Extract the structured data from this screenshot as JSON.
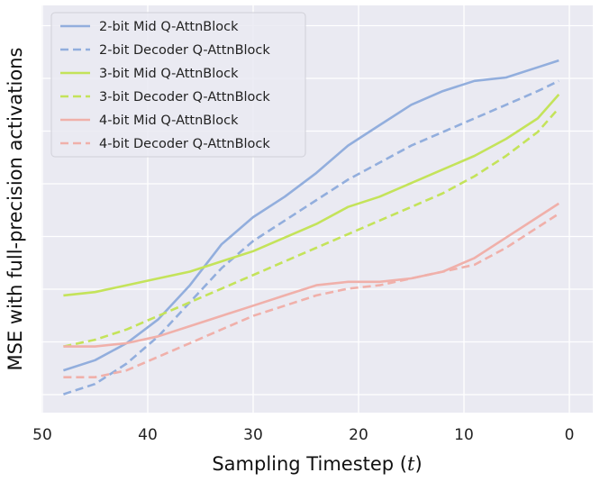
{
  "chart_data": {
    "type": "line",
    "title": "",
    "xlabel": "Sampling Timestep",
    "xlabel_var": "t",
    "ylabel": "MSE with full-precision activations",
    "xlim": [
      50,
      0
    ],
    "x_inverted": true,
    "x_ticks": [
      "50",
      "40",
      "30",
      "20",
      "10",
      "0"
    ],
    "y_ticks_labeled": false,
    "ylim": [
      0,
      1
    ],
    "grid": true,
    "legend_position": "top-left",
    "x": [
      48,
      45,
      42,
      39,
      36,
      33,
      30,
      27,
      24,
      21,
      18,
      15,
      12,
      9,
      6,
      3,
      1
    ],
    "series": [
      {
        "name": "2-bit Mid Q-AttnBlock",
        "color": "#92aedd",
        "style": "solid",
        "values": [
          0.05,
          0.08,
          0.13,
          0.2,
          0.3,
          0.42,
          0.5,
          0.56,
          0.63,
          0.71,
          0.77,
          0.83,
          0.87,
          0.9,
          0.91,
          0.94,
          0.96
        ]
      },
      {
        "name": "2-bit Decoder Q-AttnBlock",
        "color": "#92aedd",
        "style": "dashed",
        "values": [
          -0.02,
          0.01,
          0.07,
          0.15,
          0.25,
          0.35,
          0.43,
          0.49,
          0.55,
          0.61,
          0.66,
          0.71,
          0.75,
          0.79,
          0.83,
          0.87,
          0.9
        ]
      },
      {
        "name": "3-bit Mid Q-AttnBlock",
        "color": "#c4e35a",
        "style": "solid",
        "values": [
          0.27,
          0.28,
          0.3,
          0.32,
          0.34,
          0.37,
          0.4,
          0.44,
          0.48,
          0.53,
          0.56,
          0.6,
          0.64,
          0.68,
          0.73,
          0.79,
          0.86
        ]
      },
      {
        "name": "3-bit Decoder Q-AttnBlock",
        "color": "#c4e35a",
        "style": "dashed",
        "values": [
          0.12,
          0.14,
          0.17,
          0.21,
          0.25,
          0.29,
          0.33,
          0.37,
          0.41,
          0.45,
          0.49,
          0.53,
          0.57,
          0.62,
          0.68,
          0.75,
          0.82
        ]
      },
      {
        "name": "4-bit Mid Q-AttnBlock",
        "color": "#f0b0aa",
        "style": "solid",
        "values": [
          0.12,
          0.12,
          0.13,
          0.15,
          0.18,
          0.21,
          0.24,
          0.27,
          0.3,
          0.31,
          0.31,
          0.32,
          0.34,
          0.38,
          0.44,
          0.5,
          0.54
        ]
      },
      {
        "name": "4-bit Decoder Q-AttnBlock",
        "color": "#f0b0aa",
        "style": "dashed",
        "values": [
          0.03,
          0.03,
          0.05,
          0.09,
          0.13,
          0.17,
          0.21,
          0.24,
          0.27,
          0.29,
          0.3,
          0.32,
          0.34,
          0.36,
          0.41,
          0.47,
          0.51
        ]
      }
    ]
  }
}
